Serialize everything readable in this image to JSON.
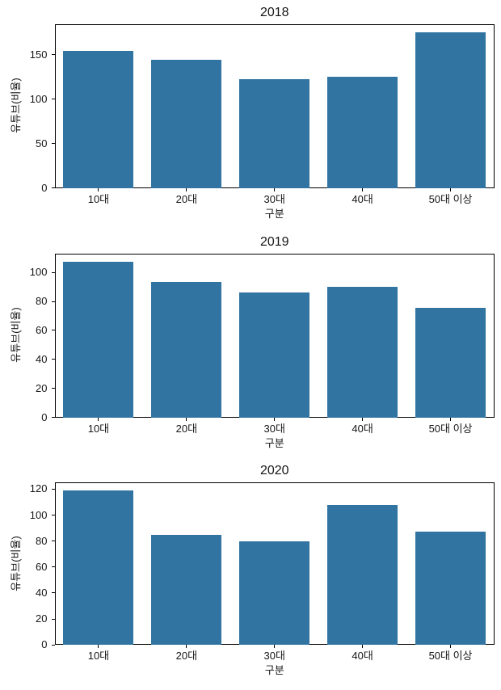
{
  "figure": {
    "background_color": "#ffffff",
    "bar_color": "#3274a1",
    "spine_color": "#000000",
    "text_color": "#161616"
  },
  "chart_data": [
    {
      "type": "bar",
      "title": "2018",
      "xlabel": "구분",
      "ylabel": "유튜브(비율)",
      "categories": [
        "10대",
        "20대",
        "30대",
        "40대",
        "50대 이상"
      ],
      "values": [
        154,
        144,
        122.5,
        125.5,
        175.5
      ],
      "yticks": [
        0,
        50,
        100,
        150
      ],
      "ylim": [
        0,
        184.3
      ],
      "grid": false,
      "legend": false,
      "bar_rel_width": 0.8
    },
    {
      "type": "bar",
      "title": "2019",
      "xlabel": "구분",
      "ylabel": "유튜브(비율)",
      "categories": [
        "10대",
        "20대",
        "30대",
        "40대",
        "50대 이상"
      ],
      "values": [
        107.5,
        93.5,
        86,
        90,
        75.5
      ],
      "yticks": [
        0,
        20,
        40,
        60,
        80,
        100
      ],
      "ylim": [
        0,
        112.9
      ],
      "grid": false,
      "legend": false,
      "bar_rel_width": 0.8
    },
    {
      "type": "bar",
      "title": "2020",
      "xlabel": "구분",
      "ylabel": "유튜브(비율)",
      "categories": [
        "10대",
        "20대",
        "30대",
        "40대",
        "50대 이상"
      ],
      "values": [
        119,
        85,
        79.5,
        107.5,
        87
      ],
      "yticks": [
        0,
        20,
        40,
        60,
        80,
        100,
        120
      ],
      "ylim": [
        0,
        125
      ],
      "grid": false,
      "legend": false,
      "bar_rel_width": 0.8
    }
  ]
}
